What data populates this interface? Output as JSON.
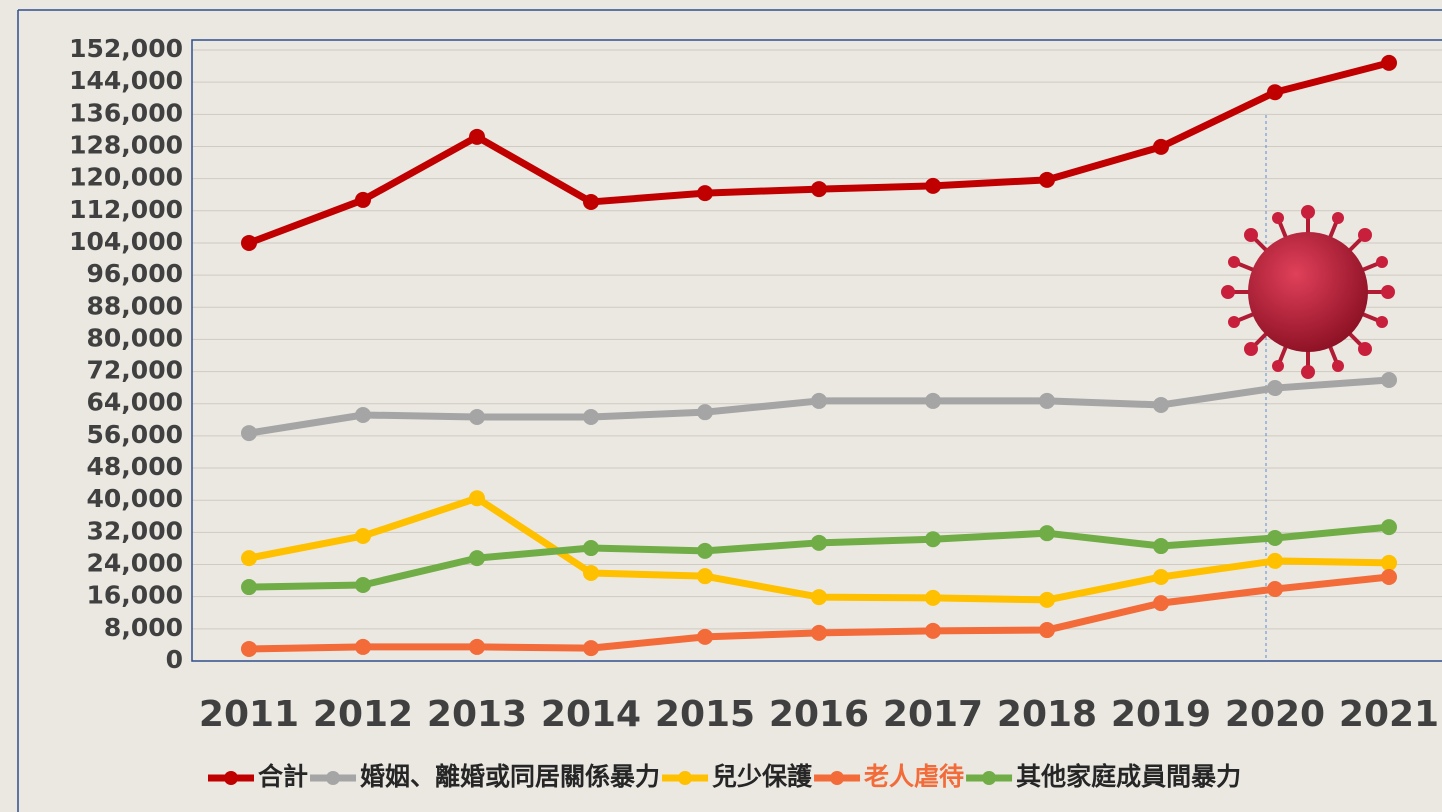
{
  "chart_data": {
    "type": "line",
    "categories": [
      "2011",
      "2012",
      "2013",
      "2014",
      "2015",
      "2016",
      "2017",
      "2018",
      "2019",
      "2020",
      "2021"
    ],
    "series": [
      {
        "name": "合計",
        "color": "#c00000",
        "values": [
          104000,
          114700,
          130400,
          114200,
          116400,
          117400,
          118200,
          119700,
          127900,
          141500,
          148800
        ]
      },
      {
        "name": "婚姻、離婚或同居關係暴力",
        "color": "#a5a5a5",
        "values": [
          56700,
          61200,
          60700,
          60700,
          61900,
          64700,
          64700,
          64700,
          63700,
          67900,
          69900
        ]
      },
      {
        "name": "兒少保護",
        "color": "#ffc000",
        "values": [
          25600,
          31100,
          40500,
          21900,
          21100,
          15900,
          15700,
          15200,
          20900,
          24900,
          24400
        ]
      },
      {
        "name": "老人虐待",
        "color": "#f26b38",
        "values": [
          3000,
          3500,
          3500,
          3200,
          6000,
          7000,
          7500,
          7700,
          14400,
          17900,
          20900
        ]
      },
      {
        "name": "其他家庭成員間暴力",
        "color": "#70ad47",
        "values": [
          18400,
          18900,
          25600,
          28100,
          27400,
          29400,
          30300,
          31800,
          28600,
          30600,
          33300
        ]
      }
    ],
    "ylim": [
      0,
      152000
    ],
    "yticks": [
      0,
      {
        "value": 8000,
        "label": "8,000"
      },
      {
        "value": 16000,
        "label": "16,000"
      },
      {
        "value": 24000,
        "label": "24,000"
      },
      {
        "value": 32000,
        "label": "32,000"
      },
      {
        "value": 40000,
        "label": "40,000"
      },
      {
        "value": 48000,
        "label": "48,000"
      },
      {
        "value": 56000,
        "label": "56,000"
      },
      {
        "value": 64000,
        "label": "64,000"
      },
      {
        "value": 72000,
        "label": "72,000"
      },
      {
        "value": 80000,
        "label": "80,000"
      },
      {
        "value": 88000,
        "label": "88,000"
      },
      {
        "value": 96000,
        "label": "96,000"
      },
      {
        "value": 104000,
        "label": "104,000"
      },
      {
        "value": 112000,
        "label": "112,000"
      },
      {
        "value": 120000,
        "label": "120,000"
      },
      {
        "value": 128000,
        "label": "128,000"
      },
      {
        "value": 136000,
        "label": "136,000"
      },
      {
        "value": 144000,
        "label": "144,000"
      },
      {
        "value": 152000,
        "label": "152,000"
      }
    ],
    "grid": true,
    "legend": "bottom"
  }
}
